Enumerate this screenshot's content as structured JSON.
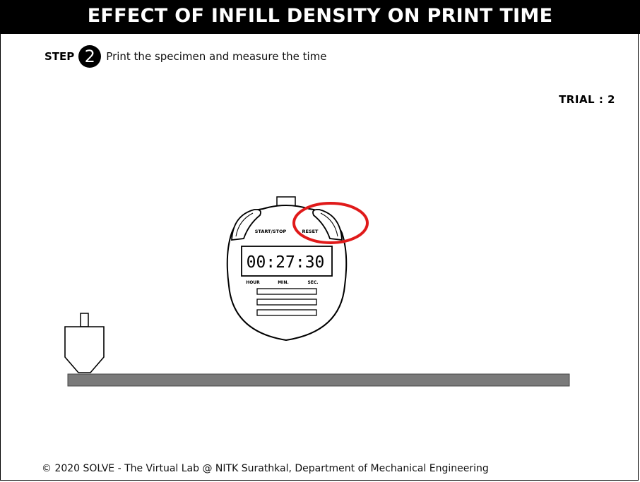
{
  "header": {
    "title": "EFFECT OF INFILL DENSITY ON PRINT TIME"
  },
  "step": {
    "label": "STEP",
    "number": "2",
    "instruction": "Print the specimen and measure the time"
  },
  "trial": {
    "text": "TRIAL : 2"
  },
  "stopwatch": {
    "start_stop_label": "START/STOP",
    "reset_label": "RESET",
    "display_time": "00:27:30",
    "unit_hour": "HOUR",
    "unit_min": "MIN.",
    "unit_sec": "SEC."
  },
  "highlight": {
    "target": "reset-button",
    "color": "#e01a1a"
  },
  "colors": {
    "bed": "#7a7a7a",
    "title_bg": "#000000"
  },
  "footer": {
    "text": "© 2020 SOLVE - The Virtual Lab @ NITK Surathkal, Department of Mechanical Engineering"
  }
}
